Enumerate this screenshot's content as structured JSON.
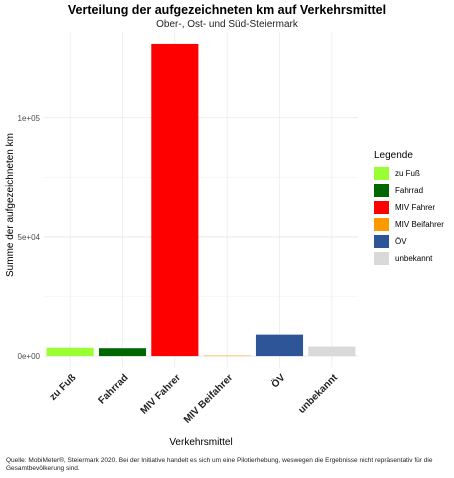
{
  "chart_data": {
    "type": "bar",
    "title": "Verteilung der aufgezeichneten km auf Verkehrsmittel",
    "subtitle": "Ober-, Ost- und Süd-Steiermark",
    "xlabel": "Verkehrsmittel",
    "ylabel": "Summe der aufgezeichneten km",
    "categories": [
      "zu Fuß",
      "Fahrrad",
      "MIV Fahrer",
      "MIV Beifahrer",
      "ÖV",
      "unbekannt"
    ],
    "values": [
      3500,
      3300,
      131000,
      200,
      9000,
      4000
    ],
    "colors": [
      "#99ff33",
      "#006600",
      "#ff0000",
      "#ff9900",
      "#2e5597",
      "#d9d9d9"
    ],
    "ylim": [
      -5000,
      136000
    ],
    "yticks": [
      0,
      50000,
      100000
    ],
    "ytick_labels": [
      "0e+00",
      "5e+04",
      "1e+05"
    ],
    "grid": true,
    "legend": {
      "title": "Legende",
      "position": "right",
      "entries": [
        "zu Fuß",
        "Fahrrad",
        "MIV Fahrer",
        "MIV Beifahrer",
        "ÖV",
        "unbekannt"
      ]
    },
    "caption": "Quelle: MobiMeter®, Steiermark 2020. Bei der Initiative handelt es sich um eine Pilotierhebung, weswegen die Ergebnisse nicht repräsentativ für die Gesamtbevölkerung sind."
  }
}
